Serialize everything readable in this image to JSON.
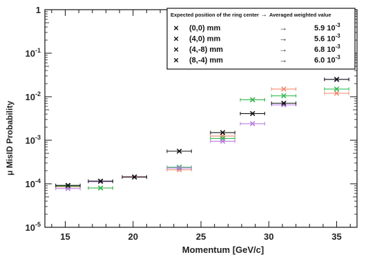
{
  "chart_data": {
    "type": "scatter",
    "xlabel": "Momentum [GeV/c]",
    "ylabel": "μ MisID Probability",
    "xlim": [
      13.5,
      36.5
    ],
    "ylim": [
      1e-05,
      1
    ],
    "yscale": "log",
    "grid": false,
    "x_ticks": [
      "15",
      "20",
      "25",
      "30",
      "35"
    ],
    "x_tick_values": [
      15,
      20,
      25,
      30,
      35
    ],
    "y_ticks": [
      {
        "value": 1,
        "base": "1",
        "exp": ""
      },
      {
        "value": 0.1,
        "base": "10",
        "exp": "-1"
      },
      {
        "value": 0.01,
        "base": "10",
        "exp": "-2"
      },
      {
        "value": 0.001,
        "base": "10",
        "exp": "-3"
      },
      {
        "value": 0.0001,
        "base": "10",
        "exp": "-4"
      },
      {
        "value": 1e-05,
        "base": "10",
        "exp": "-5"
      }
    ],
    "legend": {
      "position": "top-right",
      "header_left": "Expected position of the ring center",
      "header_arrow": "→",
      "header_right": "Averaged weighted value",
      "entries": [
        {
          "marker": "×",
          "color": "#f08a6e",
          "label": "(0,0) mm",
          "arrow": "→",
          "mantissa": "5.9 10",
          "exponent": "-3"
        },
        {
          "marker": "×",
          "color": "#33bb55",
          "label": "(4,0) mm",
          "arrow": "→",
          "mantissa": "5.6 10",
          "exponent": "-3"
        },
        {
          "marker": "×",
          "color": "#b77be0",
          "label": "(4,-8) mm",
          "arrow": "→",
          "mantissa": "6.8 10",
          "exponent": "-3"
        },
        {
          "marker": "×",
          "color": "#111111",
          "label": "(8,-4) mm",
          "arrow": "→",
          "mantissa": "6.0 10",
          "exponent": "-3"
        }
      ]
    },
    "x_error": 0.9,
    "series": [
      {
        "name": "(0,0) mm",
        "color": "#f08a6e",
        "x": [
          15.2,
          17.6,
          20.1,
          23.4,
          26.6,
          28.8,
          31.1,
          35.0
        ],
        "y": [
          8.5e-05,
          8e-05,
          0.000145,
          0.00021,
          0.00125,
          0.0085,
          0.015,
          0.012
        ]
      },
      {
        "name": "(4,0) mm",
        "color": "#33bb55",
        "x": [
          15.2,
          17.6,
          20.1,
          23.4,
          26.6,
          28.8,
          31.1,
          35.0
        ],
        "y": [
          8.8e-05,
          8e-05,
          0.000142,
          0.00024,
          0.0011,
          0.0085,
          0.0105,
          0.015
        ]
      },
      {
        "name": "(4,-8) mm",
        "color": "#b77be0",
        "x": [
          15.2,
          17.6,
          20.1,
          23.4,
          26.6,
          28.8,
          31.1,
          35.0
        ],
        "y": [
          7.8e-05,
          0.000112,
          0.000142,
          0.00023,
          0.00095,
          0.0024,
          0.0065,
          0.025
        ]
      },
      {
        "name": "(8,-4) mm",
        "color": "#111111",
        "x": [
          15.2,
          17.6,
          20.1,
          23.4,
          26.6,
          28.8,
          31.1,
          35.0
        ],
        "y": [
          9.2e-05,
          0.000115,
          0.000143,
          0.00056,
          0.0015,
          0.0041,
          0.0071,
          0.025
        ]
      }
    ]
  }
}
